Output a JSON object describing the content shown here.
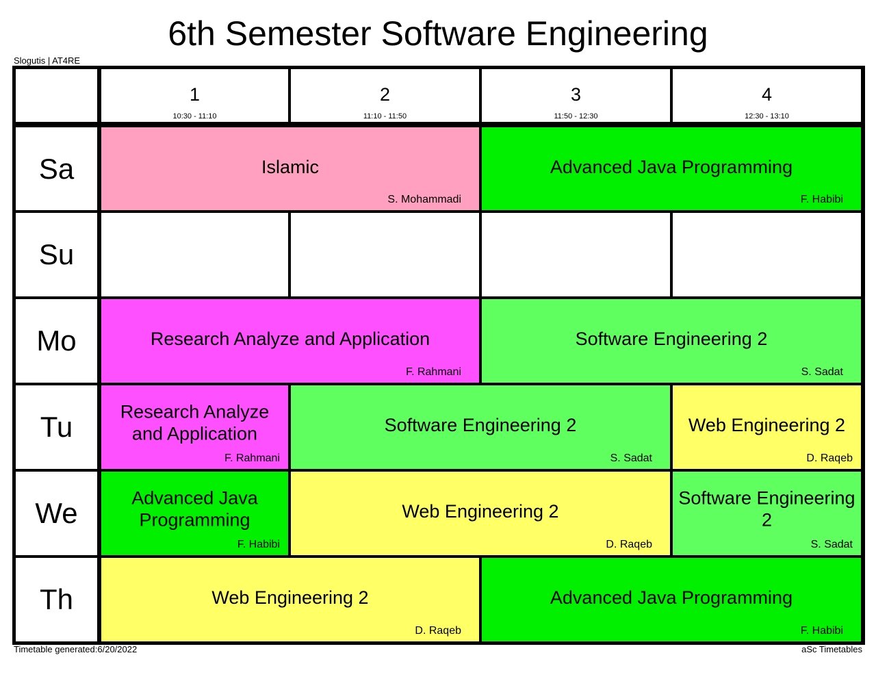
{
  "title": "6th Semester Software Engineering",
  "school_label": "Slogutis | AT4RE",
  "generated_label": "Timetable generated:6/20/2022",
  "footer_right": "aSc Timetables",
  "periods": [
    {
      "number": "1",
      "time": "10:30 - 11:10"
    },
    {
      "number": "2",
      "time": "11:10 - 11:50"
    },
    {
      "number": "3",
      "time": "11:50 - 12:30"
    },
    {
      "number": "4",
      "time": "12:30 - 13:10"
    }
  ],
  "days": [
    "Sa",
    "Su",
    "Mo",
    "Tu",
    "We",
    "Th"
  ],
  "lessons": {
    "sa_islamic": {
      "subject": "Islamic",
      "teacher": "S. Mohammadi"
    },
    "sa_java": {
      "subject": "Advanced Java Programming",
      "teacher": "F. Habibi"
    },
    "mo_research": {
      "subject": "Research Analyze and Application",
      "teacher": "F. Rahmani"
    },
    "mo_se2": {
      "subject": "Software Engineering 2",
      "teacher": "S. Sadat"
    },
    "tu_research": {
      "subject": "Research Analyze and Application",
      "teacher": "F. Rahmani"
    },
    "tu_se2": {
      "subject": "Software Engineering 2",
      "teacher": "S. Sadat"
    },
    "tu_web": {
      "subject": "Web Engineering 2",
      "teacher": "D. Raqeb"
    },
    "we_java": {
      "subject": "Advanced Java Programming",
      "teacher": "F. Habibi"
    },
    "we_web": {
      "subject": "Web Engineering 2",
      "teacher": "D. Raqeb"
    },
    "we_se2": {
      "subject": "Software Engineering 2",
      "teacher": "S. Sadat"
    },
    "th_web": {
      "subject": "Web Engineering 2",
      "teacher": "D. Raqeb"
    },
    "th_java": {
      "subject": "Advanced Java Programming",
      "teacher": "F. Habibi"
    }
  },
  "colors": {
    "islamic": "#ffa0c0",
    "advanced_java": "#00f000",
    "software_engineering": "#60ff60",
    "research": "#ff50ff",
    "web_engineering": "#ffff66"
  }
}
